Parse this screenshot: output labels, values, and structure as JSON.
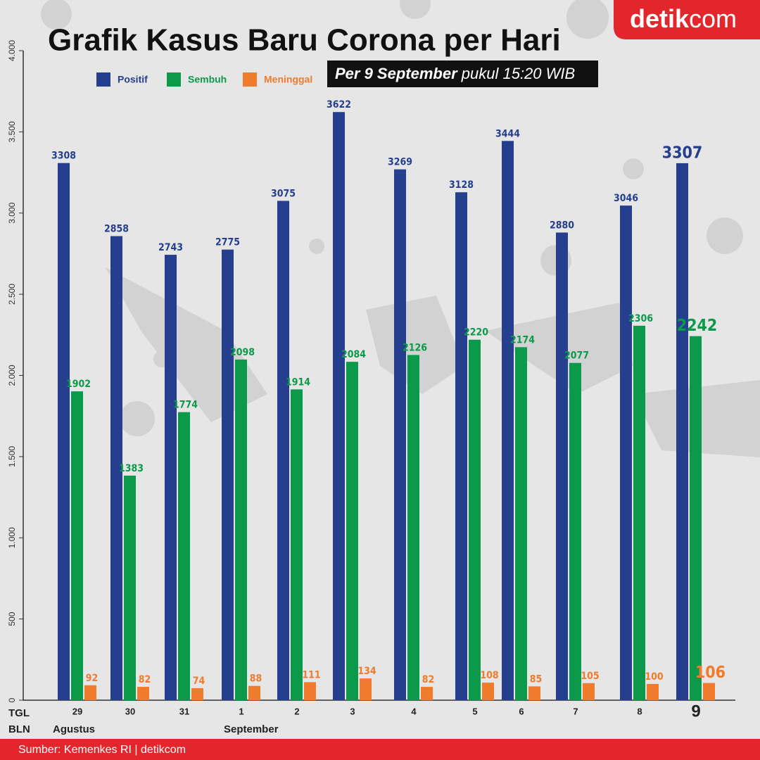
{
  "chart_data": {
    "type": "bar",
    "title": "Grafik Kasus Baru Corona per Hari",
    "subtitle_bold": "Per 9 September",
    "subtitle_rest": "pukul 15:20 WIB",
    "brand_bold": "detik",
    "brand_rest": "com",
    "source": "Sumber: Kemenkes RI | detikcom",
    "x_row_labels": [
      "TGL",
      "BLN"
    ],
    "x_groups": [
      "Agustus",
      "September"
    ],
    "categories": [
      "29",
      "30",
      "31",
      "1",
      "2",
      "3",
      "4",
      "5",
      "6",
      "7",
      "8",
      "9"
    ],
    "series": [
      {
        "name": "Positif",
        "color": "#253f8e",
        "values": [
          3308,
          2858,
          2743,
          2775,
          3075,
          3622,
          3269,
          3128,
          3444,
          2880,
          3046,
          3307
        ]
      },
      {
        "name": "Sembuh",
        "color": "#0a9a4a",
        "values": [
          1902,
          1383,
          1774,
          2098,
          1914,
          2084,
          2126,
          2220,
          2174,
          2077,
          2306,
          2242
        ]
      },
      {
        "name": "Meninggal",
        "color": "#f07b2c",
        "values": [
          92,
          82,
          74,
          88,
          111,
          134,
          82,
          108,
          85,
          105,
          100,
          106
        ]
      }
    ],
    "ylim": [
      0,
      4000
    ],
    "yticks": [
      0,
      500,
      {
        "value": 1000,
        "label": "1.000"
      },
      {
        "value": 1500,
        "label": "1.500"
      },
      {
        "value": 2000,
        "label": "2.000"
      },
      {
        "value": 2500,
        "label": "2.500"
      },
      {
        "value": 3000,
        "label": "3.000"
      },
      {
        "value": 3500,
        "label": "3.500"
      },
      {
        "value": 4000,
        "label": "4.000"
      }
    ]
  }
}
